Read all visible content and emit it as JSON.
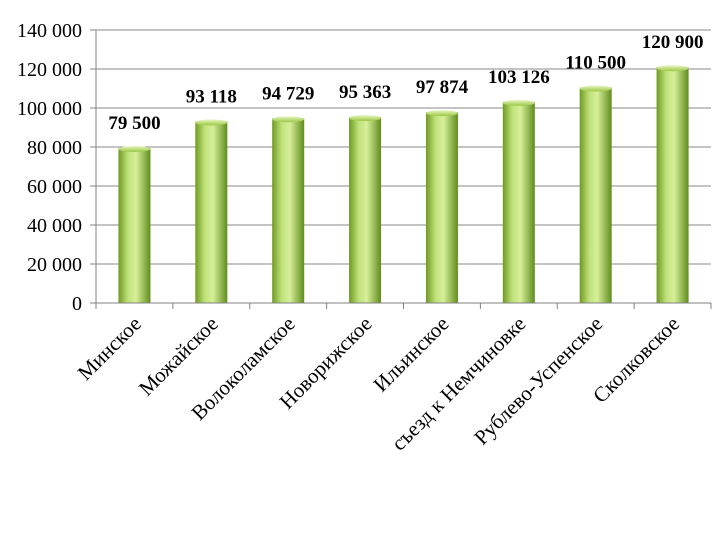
{
  "chart_data": {
    "type": "bar",
    "title": "",
    "xlabel": "",
    "ylabel": "",
    "categories": [
      "Минское",
      "Можайское",
      "Волоколамское",
      "Новорижское",
      "Ильинское",
      "съезд к Немчиновке",
      "Рублево-Успенское",
      "Сколковское"
    ],
    "values": [
      79500,
      93118,
      94729,
      95363,
      97874,
      103126,
      110500,
      120900
    ],
    "value_labels": [
      "79 500",
      "93 118",
      "94 729",
      "95 363",
      "97 874",
      "103 126",
      "110 500",
      "120 900"
    ],
    "yticks": [
      0,
      20000,
      40000,
      60000,
      80000,
      100000,
      120000,
      140000
    ],
    "ytick_labels": [
      "0",
      "20 000",
      "40 000",
      "60 000",
      "80 000",
      "100 000",
      "120 000",
      "140 000"
    ],
    "ylim": [
      0,
      140000
    ],
    "grid": true,
    "legend": "none",
    "colors": {
      "bar_light": "#d7ef9a",
      "bar_mid": "#9bc641",
      "bar_dark": "#5f8d1b",
      "grid": "#8a8a8a",
      "axis": "#808080"
    }
  }
}
